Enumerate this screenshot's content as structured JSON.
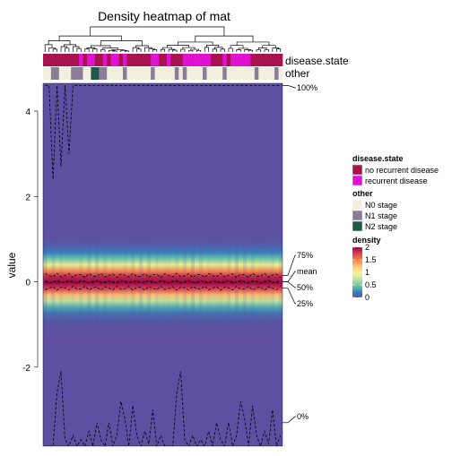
{
  "chart_data": {
    "type": "heatmap",
    "title": "Density heatmap of mat",
    "ylabel": "value",
    "ylim": [
      -3.85,
      4.65
    ],
    "y_ticks": [
      "4",
      "2",
      "0",
      "-2"
    ],
    "y_tick_values": [
      4,
      2,
      0,
      -2
    ],
    "n_columns": 60,
    "annotation_tracks": [
      {
        "name": "disease.state",
        "values": [
          "no",
          "no",
          "no",
          "no",
          "no",
          "no",
          "no",
          "no",
          "no",
          "rec",
          "no",
          "rec",
          "rec",
          "no",
          "no",
          "rec",
          "no",
          "rec",
          "rec",
          "no",
          "rec",
          "no",
          "no",
          "no",
          "no",
          "no",
          "no",
          "rec",
          "rec",
          "no",
          "no",
          "rec",
          "no",
          "no",
          "no",
          "rec",
          "rec",
          "rec",
          "rec",
          "rec",
          "rec",
          "rec",
          "no",
          "no",
          "no",
          "rec",
          "no",
          "rec",
          "rec",
          "rec",
          "rec",
          "rec",
          "no",
          "no",
          "no",
          "no",
          "no",
          "no",
          "no",
          "no"
        ]
      },
      {
        "name": "other",
        "values": [
          "N0",
          "N0",
          "N1",
          "N1",
          "N0",
          "N0",
          "N0",
          "N1",
          "N1",
          "N1",
          "N0",
          "N0",
          "N2",
          "N2",
          "N1",
          "N1",
          "N0",
          "N0",
          "N0",
          "N0",
          "N1",
          "N0",
          "N0",
          "N0",
          "N0",
          "N0",
          "N0",
          "N1",
          "N0",
          "N0",
          "N0",
          "N0",
          "N0",
          "N1",
          "N0",
          "N1",
          "N0",
          "N0",
          "N0",
          "N0",
          "N1",
          "N0",
          "N0",
          "N0",
          "N0",
          "N1",
          "N0",
          "N0",
          "N0",
          "N0",
          "N0",
          "N0",
          "N0",
          "N1",
          "N0",
          "N0",
          "N0",
          "N0",
          "N1",
          "N0"
        ]
      }
    ],
    "quantile_lines": [
      {
        "label": "100%",
        "value": 4.6
      },
      {
        "label": "75%",
        "value": 0.15
      },
      {
        "label": "mean",
        "value": 0.0
      },
      {
        "label": "50%",
        "value": 0.0
      },
      {
        "label": "25%",
        "value": -0.15
      },
      {
        "label": "0%",
        "value": -3.3
      }
    ],
    "density_range": [
      0,
      2
    ]
  },
  "legend": {
    "disease_state": {
      "title": "disease.state",
      "items": [
        {
          "key": "no",
          "label": "no recurrent disease",
          "color": "#a8134f"
        },
        {
          "key": "rec",
          "label": "recurrent disease",
          "color": "#e011d1"
        }
      ]
    },
    "other": {
      "title": "other",
      "items": [
        {
          "key": "N0",
          "label": "N0 stage",
          "color": "#f1efde"
        },
        {
          "key": "N1",
          "label": "N1 stage",
          "color": "#8c7c98"
        },
        {
          "key": "N2",
          "label": "N2 stage",
          "color": "#1e5a48"
        }
      ]
    },
    "density": {
      "title": "density",
      "ticks": [
        "2",
        "1.5",
        "1",
        "0.5",
        "0"
      ],
      "tick_values": [
        2,
        1.5,
        1,
        0.5,
        0
      ]
    }
  },
  "colors": {
    "background_low": "#5e4fa2",
    "scale": [
      "#5e4fa2",
      "#3288bd",
      "#66c2a5",
      "#abdda4",
      "#e6f598",
      "#fee08b",
      "#fdae61",
      "#f46d43",
      "#d53e4f",
      "#9e0142"
    ]
  }
}
